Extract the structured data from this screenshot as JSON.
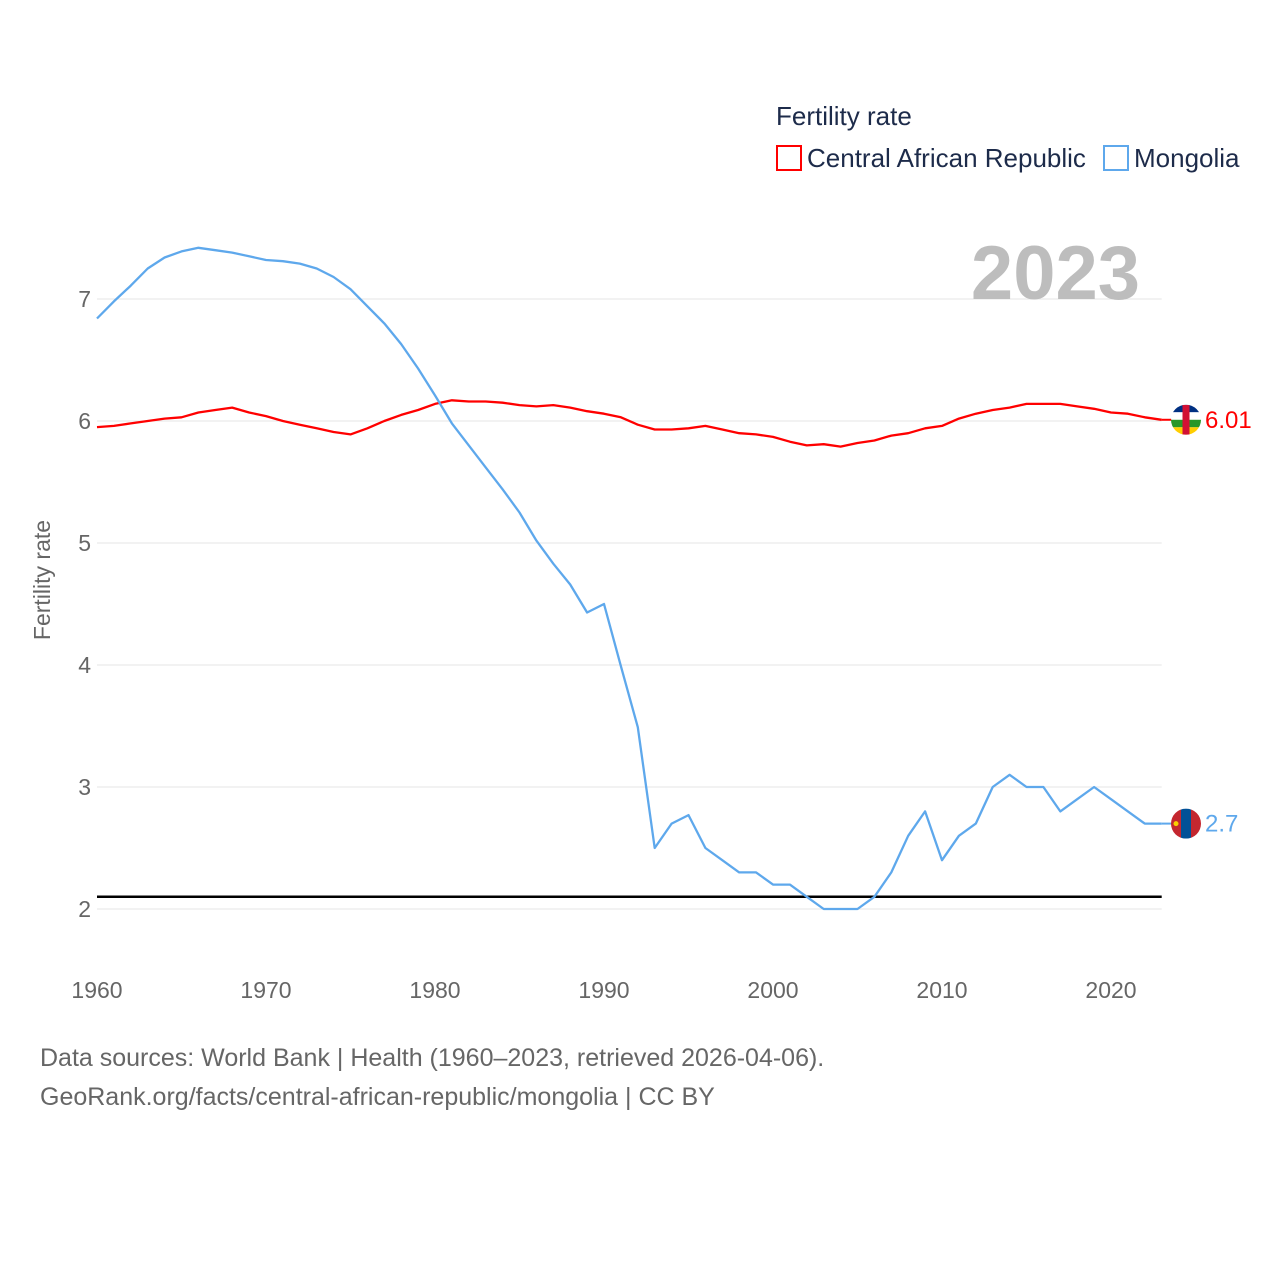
{
  "chart_data": {
    "type": "line",
    "title": "Fertility rate",
    "ylabel": "Fertility rate",
    "xlabel": "",
    "year_watermark": "2023",
    "xlim": [
      1960,
      2023
    ],
    "ylim": [
      1.5,
      7.5
    ],
    "x_ticks": [
      "1960",
      "1970",
      "1980",
      "1990",
      "2000",
      "2010",
      "2020"
    ],
    "y_ticks": [
      "2",
      "3",
      "4",
      "5",
      "6",
      "7"
    ],
    "grid": true,
    "legend_position": "top-right",
    "reference_line": 2.1,
    "x": [
      1960,
      1961,
      1962,
      1963,
      1964,
      1965,
      1966,
      1967,
      1968,
      1969,
      1970,
      1971,
      1972,
      1973,
      1974,
      1975,
      1976,
      1977,
      1978,
      1979,
      1980,
      1981,
      1982,
      1983,
      1984,
      1985,
      1986,
      1987,
      1988,
      1989,
      1990,
      1991,
      1992,
      1993,
      1994,
      1995,
      1996,
      1997,
      1998,
      1999,
      2000,
      2001,
      2002,
      2003,
      2004,
      2005,
      2006,
      2007,
      2008,
      2009,
      2010,
      2011,
      2012,
      2013,
      2014,
      2015,
      2016,
      2017,
      2018,
      2019,
      2020,
      2021,
      2022,
      2023
    ],
    "series": [
      {
        "name": "Central African Republic",
        "color": "#ff0000",
        "end_label": "6.01",
        "values": [
          5.95,
          5.96,
          5.98,
          6.0,
          6.02,
          6.03,
          6.07,
          6.09,
          6.11,
          6.07,
          6.04,
          6.0,
          5.97,
          5.94,
          5.91,
          5.89,
          5.94,
          6.0,
          6.05,
          6.09,
          6.14,
          6.17,
          6.16,
          6.16,
          6.15,
          6.13,
          6.12,
          6.13,
          6.11,
          6.08,
          6.06,
          6.03,
          5.97,
          5.93,
          5.93,
          5.94,
          5.96,
          5.93,
          5.9,
          5.89,
          5.87,
          5.83,
          5.8,
          5.81,
          5.79,
          5.82,
          5.84,
          5.88,
          5.9,
          5.94,
          5.96,
          6.02,
          6.06,
          6.09,
          6.11,
          6.14,
          6.14,
          6.14,
          6.12,
          6.1,
          6.07,
          6.06,
          6.03,
          6.01
        ]
      },
      {
        "name": "Mongolia",
        "color": "#5ea8ec",
        "end_label": "2.7",
        "values": [
          6.84,
          6.98,
          7.11,
          7.25,
          7.34,
          7.39,
          7.42,
          7.4,
          7.38,
          7.35,
          7.32,
          7.31,
          7.29,
          7.25,
          7.18,
          7.08,
          6.94,
          6.8,
          6.63,
          6.43,
          6.21,
          5.98,
          5.8,
          5.62,
          5.44,
          5.25,
          5.02,
          4.83,
          4.66,
          4.43,
          4.5,
          3.99,
          3.49,
          2.5,
          2.7,
          2.77,
          2.5,
          2.4,
          2.3,
          2.3,
          2.2,
          2.2,
          2.1,
          2.0,
          2.0,
          2.0,
          2.1,
          2.3,
          2.6,
          2.8,
          2.4,
          2.6,
          2.7,
          3.0,
          3.1,
          3.0,
          3.0,
          2.8,
          2.9,
          3.0,
          2.9,
          2.8,
          2.7,
          2.7
        ]
      }
    ]
  },
  "footer": {
    "line1": "Data sources: World Bank | Health (1960–2023, retrieved 2026-04-06).",
    "line2": "GeoRank.org/facts/central-african-republic/mongolia | CC BY"
  }
}
